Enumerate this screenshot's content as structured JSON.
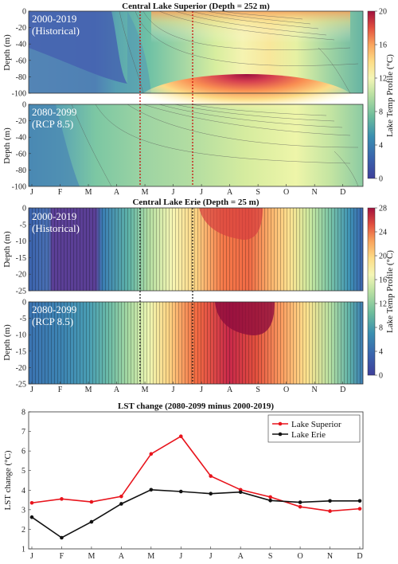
{
  "colors": {
    "superior": "#e8141c",
    "erie": "#111111",
    "may_line": "#cc0000",
    "jul_line": "#cc0000",
    "erie_lines": "#111111"
  },
  "months": [
    "J",
    "F",
    "M",
    "A",
    "M",
    "J",
    "J",
    "A",
    "S",
    "O",
    "N",
    "D"
  ],
  "superior": {
    "title": "Central Lake Superior (Depth = 252 m)",
    "ylabel": "Depth (m)",
    "yticks": [
      "0",
      "-20",
      "-40",
      "-60",
      "-80",
      "-100"
    ],
    "historical_label_1": "2000-2019",
    "historical_label_2": "(Historical)",
    "future_label_1": "2080-2099",
    "future_label_2": "(RCP 8.5)",
    "colorbar_label": "Lake Temp Profile (°C)",
    "colorbar_ticks": [
      "20",
      "16",
      "12",
      "8",
      "4",
      "0"
    ],
    "colorbar_range": [
      0,
      20
    ]
  },
  "erie": {
    "title": "Central Lake Erie (Depth = 25 m)",
    "ylabel": "Depth (m)",
    "yticks": [
      "0",
      "-5",
      "-10",
      "-15",
      "-20",
      "-25"
    ],
    "historical_label_1": "2000-2019",
    "historical_label_2": "(Historical)",
    "future_label_1": "2080-2099",
    "future_label_2": "(RCP 8.5)",
    "colorbar_label": "Lake Temp Profile (°C)",
    "colorbar_ticks": [
      "28",
      "24",
      "20",
      "16",
      "12",
      "8",
      "4",
      "0"
    ],
    "colorbar_range": [
      0,
      28
    ]
  },
  "chart_data": {
    "type": "line",
    "title": "LST change (2080-2099 minus 2000-2019)",
    "xlabel": "",
    "ylabel": "LST change (°C)",
    "categories": [
      "J",
      "F",
      "M",
      "A",
      "M",
      "J",
      "J",
      "A",
      "S",
      "O",
      "N",
      "D"
    ],
    "ylim": [
      1,
      8
    ],
    "yticks": [
      "1",
      "2",
      "3",
      "4",
      "5",
      "6",
      "7",
      "8"
    ],
    "legend_position": "top-right",
    "series": [
      {
        "name": "Lake Superior",
        "color": "#e8141c",
        "values": [
          3.35,
          3.55,
          3.4,
          3.68,
          5.85,
          6.75,
          4.72,
          4.02,
          3.65,
          3.15,
          2.93,
          3.05
        ]
      },
      {
        "name": "Lake Erie",
        "color": "#111111",
        "values": [
          2.62,
          1.57,
          2.38,
          3.3,
          4.02,
          3.93,
          3.82,
          3.9,
          3.47,
          3.38,
          3.45,
          3.45
        ]
      }
    ]
  }
}
